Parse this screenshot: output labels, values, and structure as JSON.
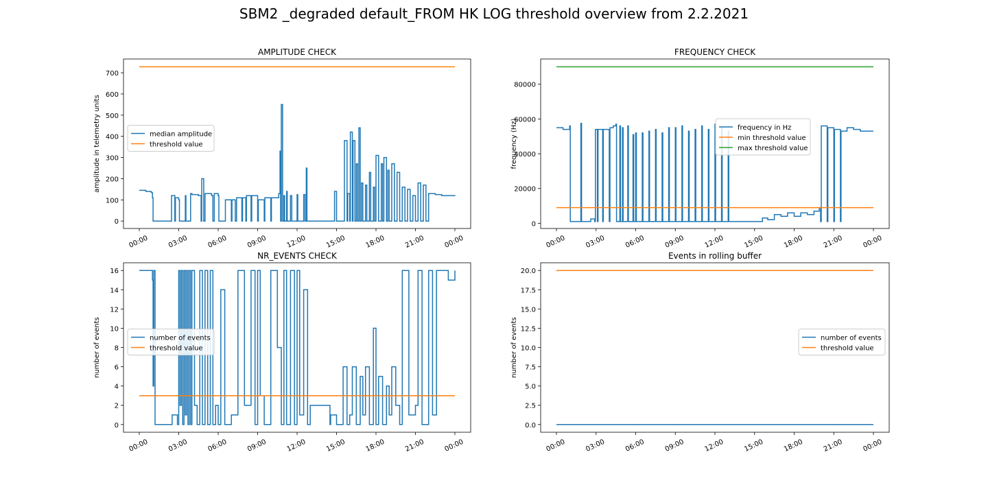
{
  "figure": {
    "title": "SBM2 _degraded default_FROM HK LOG threshold overview from 2.2.2021"
  },
  "colors": {
    "series1": "#1f77b4",
    "series2": "#ff7f0e",
    "series3": "#2ca02c"
  },
  "chart_data": [
    {
      "type": "line",
      "title": "AMPLITUDE CHECK",
      "xlabel": "",
      "ylabel": "amplitude in telemetry units",
      "xlim": [
        0,
        24
      ],
      "ylim": [
        -35,
        765
      ],
      "yticks": [
        0,
        100,
        200,
        300,
        400,
        500,
        600,
        700
      ],
      "ytick_labels": [
        "0",
        "100",
        "200",
        "300",
        "400",
        "500",
        "600",
        "700"
      ],
      "xticks": [
        0,
        3,
        6,
        9,
        12,
        15,
        18,
        21,
        24
      ],
      "xtick_labels": [
        "00:00",
        "03:00",
        "06:00",
        "09:00",
        "12:00",
        "15:00",
        "18:00",
        "21:00",
        "00:00"
      ],
      "legend_position": "center-left",
      "series": [
        {
          "name": "median amplitude",
          "color": "#1f77b4",
          "x": [
            0,
            0.5,
            0.9,
            1.0,
            1.05,
            1.5,
            2.0,
            2.05,
            2.4,
            2.45,
            2.7,
            2.75,
            3.0,
            3.05,
            3.5,
            3.55,
            3.9,
            4.0,
            4.5,
            4.7,
            4.75,
            4.9,
            5.0,
            5.5,
            5.6,
            5.7,
            6.0,
            6.05,
            6.5,
            6.55,
            7.0,
            7.05,
            7.3,
            7.4,
            7.8,
            7.85,
            8.1,
            8.15,
            8.5,
            8.55,
            9.0,
            9.05,
            9.5,
            9.55,
            10.0,
            10.05,
            10.6,
            10.7,
            10.75,
            10.8,
            10.9,
            11.0,
            11.05,
            11.2,
            11.25,
            11.5,
            11.6,
            12.0,
            12.05,
            12.5,
            12.6,
            12.7,
            12.75,
            12.8,
            13.0,
            13.5,
            14.0,
            14.5,
            14.8,
            14.85,
            15.0,
            15.5,
            15.6,
            15.8,
            15.85,
            16.0,
            16.05,
            16.2,
            16.25,
            16.4,
            16.5,
            16.6,
            16.7,
            16.8,
            16.9,
            17.0,
            17.2,
            17.3,
            17.5,
            17.6,
            17.8,
            17.9,
            18.0,
            18.2,
            18.4,
            18.5,
            18.6,
            18.8,
            18.9,
            19.0,
            19.2,
            19.4,
            19.6,
            19.8,
            20.0,
            20.2,
            20.4,
            20.6,
            20.8,
            21.0,
            21.2,
            21.4,
            21.6,
            21.8,
            22.0,
            22.5,
            23.0,
            23.5,
            24.0
          ],
          "values": [
            145,
            140,
            135,
            110,
            0,
            0,
            0,
            0,
            0,
            120,
            0,
            110,
            100,
            0,
            120,
            0,
            130,
            125,
            120,
            0,
            200,
            0,
            130,
            120,
            0,
            130,
            120,
            0,
            0,
            100,
            0,
            100,
            0,
            110,
            0,
            110,
            0,
            120,
            0,
            120,
            0,
            100,
            0,
            110,
            0,
            110,
            130,
            330,
            0,
            550,
            0,
            120,
            0,
            140,
            0,
            120,
            0,
            125,
            0,
            125,
            0,
            250,
            0,
            0,
            0,
            0,
            0,
            0,
            0,
            140,
            0,
            0,
            380,
            0,
            130,
            0,
            420,
            0,
            380,
            0,
            270,
            0,
            440,
            0,
            180,
            0,
            170,
            0,
            230,
            0,
            160,
            0,
            310,
            0,
            270,
            0,
            300,
            0,
            240,
            0,
            270,
            0,
            230,
            0,
            160,
            0,
            150,
            0,
            120,
            0,
            180,
            0,
            170,
            0,
            130,
            125,
            120,
            120,
            118
          ]
        },
        {
          "name": "threshold value",
          "color": "#ff7f0e",
          "x": [
            0,
            24
          ],
          "values": [
            728,
            728
          ]
        }
      ]
    },
    {
      "type": "line",
      "title": "FREQUENCY CHECK",
      "xlabel": "",
      "ylabel": "frequency (Hz)",
      "xlim": [
        0,
        24
      ],
      "ylim": [
        -3000,
        94500
      ],
      "yticks": [
        0,
        20000,
        40000,
        60000,
        80000
      ],
      "ytick_labels": [
        "0",
        "20000",
        "40000",
        "60000",
        "80000"
      ],
      "xticks": [
        0,
        3,
        6,
        9,
        12,
        15,
        18,
        21,
        24
      ],
      "xtick_labels": [
        "00:00",
        "03:00",
        "06:00",
        "09:00",
        "12:00",
        "15:00",
        "18:00",
        "21:00",
        "00:00"
      ],
      "legend_position": "center",
      "series": [
        {
          "name": "frequency in Hz",
          "color": "#1f77b4",
          "x": [
            0,
            0.5,
            1.0,
            1.05,
            1.8,
            1.85,
            1.9,
            2.5,
            2.6,
            2.9,
            2.95,
            3.1,
            3.15,
            3.5,
            3.55,
            4.0,
            4.05,
            4.3,
            4.5,
            4.55,
            4.8,
            4.85,
            5.0,
            5.05,
            5.4,
            5.45,
            5.8,
            5.85,
            6.0,
            6.05,
            6.5,
            6.55,
            7.0,
            7.05,
            7.5,
            7.55,
            8.0,
            8.05,
            8.5,
            8.55,
            9.0,
            9.05,
            9.5,
            9.55,
            10.0,
            10.05,
            10.5,
            10.55,
            11.0,
            11.05,
            11.5,
            11.55,
            12.0,
            12.05,
            12.5,
            12.55,
            13.0,
            13.05,
            13.5,
            14.0,
            14.5,
            15.0,
            15.5,
            15.6,
            16.0,
            16.5,
            17.0,
            17.5,
            18.0,
            18.5,
            19.0,
            19.5,
            19.9,
            20.0,
            20.05,
            20.5,
            20.55,
            21.0,
            21.05,
            21.5,
            21.55,
            22.0,
            22.5,
            23.0,
            23.5,
            24.0
          ],
          "values": [
            55000,
            54000,
            56000,
            1000,
            1000,
            57500,
            1000,
            1000,
            2500,
            1000,
            54000,
            1000,
            54000,
            1000,
            54000,
            1000,
            55000,
            56000,
            57000,
            1000,
            56000,
            1000,
            55000,
            1000,
            56000,
            1000,
            51000,
            1000,
            52000,
            1000,
            52000,
            1000,
            53000,
            1000,
            54000,
            1000,
            52000,
            1000,
            55000,
            1000,
            55000,
            1000,
            56000,
            1000,
            53000,
            1000,
            54000,
            1000,
            56000,
            1000,
            54000,
            1000,
            57000,
            1000,
            55000,
            1000,
            53000,
            1000,
            1000,
            1000,
            1000,
            1000,
            1000,
            3000,
            2000,
            5000,
            4000,
            6000,
            4000,
            6000,
            5000,
            7000,
            9000,
            1000,
            56000,
            1000,
            55000,
            1000,
            54000,
            1000,
            53000,
            55000,
            54000,
            53000,
            53000,
            53000
          ]
        },
        {
          "name": "min threshold value",
          "color": "#ff7f0e",
          "x": [
            0,
            24
          ],
          "values": [
            9000,
            9000
          ]
        },
        {
          "name": "max threshold value",
          "color": "#2ca02c",
          "x": [
            0,
            24
          ],
          "values": [
            90000,
            90000
          ]
        }
      ]
    },
    {
      "type": "line",
      "title": "NR_EVENTS CHECK",
      "xlabel": "",
      "ylabel": "number of events",
      "xlim": [
        0,
        24
      ],
      "ylim": [
        -0.8,
        16.8
      ],
      "yticks": [
        0,
        2,
        4,
        6,
        8,
        10,
        12,
        14,
        16
      ],
      "ytick_labels": [
        "0",
        "2",
        "4",
        "6",
        "8",
        "10",
        "12",
        "14",
        "16"
      ],
      "xticks": [
        0,
        3,
        6,
        9,
        12,
        15,
        18,
        21,
        24
      ],
      "xtick_labels": [
        "00:00",
        "03:00",
        "06:00",
        "09:00",
        "12:00",
        "15:00",
        "18:00",
        "21:00",
        "00:00"
      ],
      "legend_position": "center-left",
      "series": [
        {
          "name": "number of events",
          "color": "#1f77b4",
          "x": [
            0,
            0.9,
            1.0,
            1.05,
            1.1,
            1.2,
            1.5,
            2.0,
            2.5,
            2.9,
            3.0,
            3.1,
            3.2,
            3.3,
            3.4,
            3.5,
            3.6,
            3.7,
            3.8,
            3.9,
            4.0,
            4.2,
            4.4,
            4.6,
            4.8,
            5.0,
            5.2,
            5.4,
            5.6,
            5.8,
            6.0,
            6.2,
            6.5,
            7.0,
            7.5,
            8.0,
            8.5,
            8.8,
            9.0,
            9.2,
            9.5,
            10.0,
            10.5,
            10.8,
            11.0,
            11.2,
            11.5,
            11.8,
            12.0,
            12.2,
            12.5,
            12.8,
            13.0,
            14.5,
            14.55,
            15.0,
            15.5,
            15.8,
            16.0,
            16.2,
            16.5,
            16.8,
            17.0,
            17.2,
            17.5,
            17.8,
            18.0,
            18.2,
            18.5,
            18.8,
            19.0,
            19.2,
            19.5,
            19.8,
            20.0,
            20.5,
            21.0,
            21.2,
            21.5,
            22.0,
            22.3,
            22.6,
            23.0,
            23.5,
            24.0
          ],
          "values": [
            16,
            16,
            15,
            4,
            16,
            0,
            0,
            0,
            1,
            0,
            16,
            2,
            16,
            0,
            16,
            1,
            16,
            0,
            16,
            0,
            16,
            2,
            0,
            16,
            0,
            16,
            0,
            16,
            0,
            2,
            0,
            14,
            0,
            1,
            16,
            2,
            16,
            0,
            16,
            3,
            0,
            16,
            8,
            0,
            16,
            0,
            16,
            0,
            16,
            1,
            14,
            0,
            2,
            0,
            1,
            0,
            6,
            0,
            1,
            6,
            0,
            5,
            1,
            6,
            0,
            10,
            0,
            5,
            0,
            4,
            1,
            6,
            2,
            0,
            16,
            1,
            2,
            16,
            0,
            16,
            1,
            16,
            16,
            15,
            16
          ]
        },
        {
          "name": "threshold value",
          "color": "#ff7f0e",
          "x": [
            0,
            24
          ],
          "values": [
            3,
            3
          ]
        }
      ]
    },
    {
      "type": "line",
      "title": "Events in rolling buffer",
      "xlabel": "",
      "ylabel": "number of events",
      "xlim": [
        0,
        24
      ],
      "ylim": [
        -1,
        21
      ],
      "yticks": [
        0,
        2.5,
        5,
        7.5,
        10,
        12.5,
        15,
        17.5,
        20
      ],
      "ytick_labels": [
        "0.0",
        "2.5",
        "5.0",
        "7.5",
        "10.0",
        "12.5",
        "15.0",
        "17.5",
        "20.0"
      ],
      "xticks": [
        0,
        3,
        6,
        9,
        12,
        15,
        18,
        21,
        24
      ],
      "xtick_labels": [
        "00:00",
        "03:00",
        "06:00",
        "09:00",
        "12:00",
        "15:00",
        "18:00",
        "21:00",
        "00:00"
      ],
      "legend_position": "center-right",
      "series": [
        {
          "name": "number of events",
          "color": "#1f77b4",
          "x": [
            0,
            24
          ],
          "values": [
            0,
            0
          ]
        },
        {
          "name": "threshold value",
          "color": "#ff7f0e",
          "x": [
            0,
            24
          ],
          "values": [
            20,
            20
          ]
        }
      ]
    }
  ]
}
